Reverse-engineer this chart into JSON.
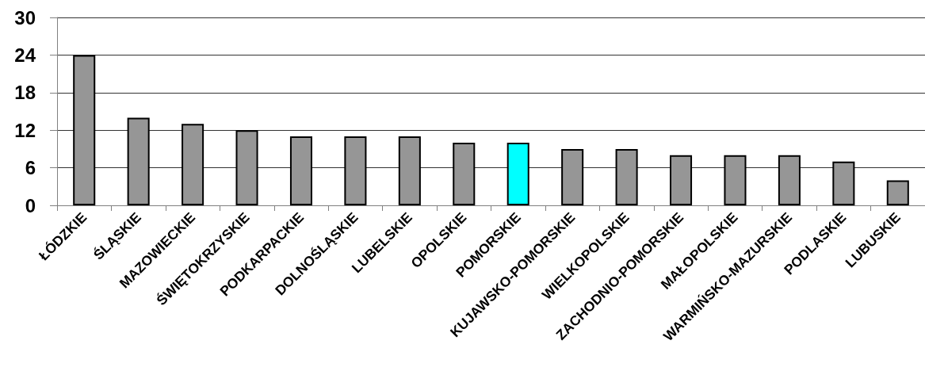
{
  "chart_data": {
    "type": "bar",
    "categories": [
      "ŁÓDZKIE",
      "ŚLĄSKIE",
      "MAZOWIECKIE",
      "ŚWIĘTOKRZYSKIE",
      "PODKARPACKIE",
      "DOLNOŚLĄSKIE",
      "LUBELSKIE",
      "OPOLSKIE",
      "POMORSKIE",
      "KUJAWSKO-POMORSKIE",
      "WIELKOPOLSKIE",
      "ZACHODNIO-POMORSKIE",
      "MAŁOPOLSKIE",
      "WARMIŃSKO-MAZURSKIE",
      "PODLASKIE",
      "LUBUSKIE"
    ],
    "values": [
      24,
      14,
      13,
      12,
      11,
      11,
      11,
      10,
      10,
      9,
      9,
      8,
      8,
      8,
      7,
      4
    ],
    "colors": [
      "#969696",
      "#969696",
      "#969696",
      "#969696",
      "#969696",
      "#969696",
      "#969696",
      "#969696",
      "#00ffff",
      "#969696",
      "#969696",
      "#969696",
      "#969696",
      "#969696",
      "#969696",
      "#969696"
    ],
    "ylim": [
      0,
      30
    ],
    "yticks": [
      0,
      6,
      12,
      18,
      24,
      30
    ],
    "grid": "y"
  }
}
